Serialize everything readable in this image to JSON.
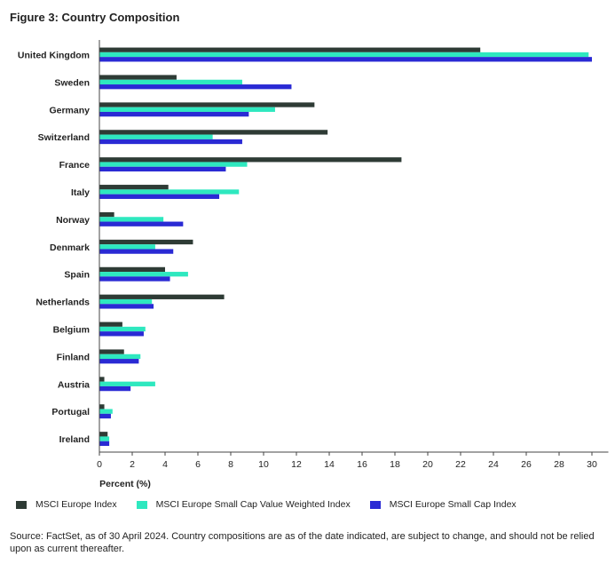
{
  "title": "Figure 3: Country Composition",
  "chart_data": {
    "type": "bar",
    "orientation": "horizontal",
    "categories": [
      "United Kingdom",
      "Sweden",
      "Germany",
      "Switzerland",
      "France",
      "Italy",
      "Norway",
      "Denmark",
      "Spain",
      "Netherlands",
      "Belgium",
      "Finland",
      "Austria",
      "Portugal",
      "Ireland"
    ],
    "series": [
      {
        "name": "MSCI Europe Index",
        "color": "#2e3b35",
        "values": [
          23.2,
          4.7,
          13.1,
          13.9,
          18.4,
          4.2,
          0.9,
          5.7,
          4.0,
          7.6,
          1.4,
          1.5,
          0.3,
          0.3,
          0.5
        ]
      },
      {
        "name": "MSCI Europe Small Cap Value Weighted Index",
        "color": "#2ee8bf",
        "values": [
          29.8,
          8.7,
          10.7,
          6.9,
          9.0,
          8.5,
          3.9,
          3.4,
          5.4,
          3.2,
          2.8,
          2.5,
          3.4,
          0.8,
          0.6
        ]
      },
      {
        "name": "MSCI Europe Small Cap Index",
        "color": "#2a2ad4",
        "values": [
          30.0,
          11.7,
          9.1,
          8.7,
          7.7,
          7.3,
          5.1,
          4.5,
          4.3,
          3.3,
          2.7,
          2.4,
          1.9,
          0.7,
          0.6
        ]
      }
    ],
    "xlim": [
      0,
      31
    ],
    "xticks": [
      0,
      2,
      4,
      6,
      8,
      10,
      12,
      14,
      16,
      18,
      20,
      22,
      24,
      26,
      28,
      30
    ],
    "xlabel": "Percent (%)",
    "legend_position": "bottom"
  },
  "source": "Source: FactSet, as of 30 April 2024. Country compositions are as of the date indicated, are subject to change, and should not be relied upon as current thereafter."
}
